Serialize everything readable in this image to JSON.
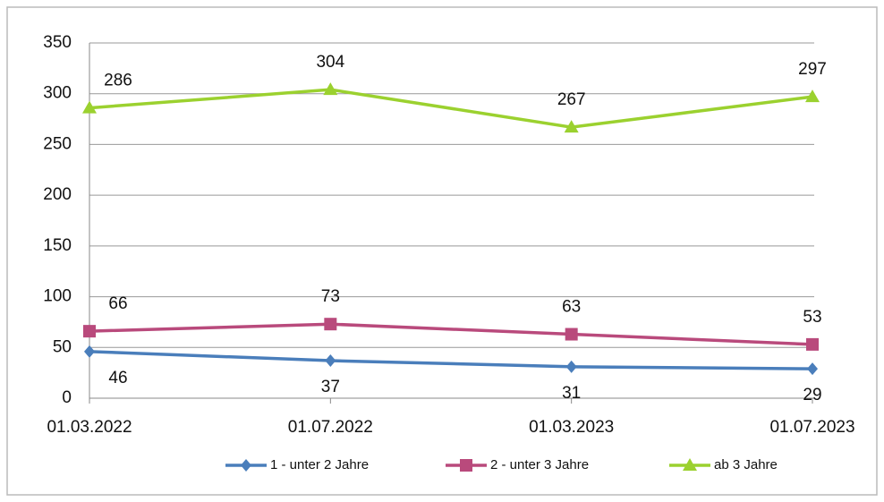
{
  "chart_data": {
    "type": "line",
    "categories": [
      "01.03.2022",
      "01.07.2022",
      "01.03.2023",
      "01.07.2023"
    ],
    "series": [
      {
        "name": "1 - unter 2 Jahre",
        "color": "#4a7ebb",
        "marker": "diamond",
        "values": [
          46,
          37,
          31,
          29
        ]
      },
      {
        "name": "2 - unter 3 Jahre",
        "color": "#b94a7c",
        "marker": "square",
        "values": [
          66,
          73,
          63,
          53
        ]
      },
      {
        "name": "ab 3 Jahre",
        "color": "#9bd12f",
        "marker": "triangle",
        "values": [
          286,
          304,
          267,
          297
        ]
      }
    ],
    "ylim": [
      0,
      350
    ],
    "yticks": [
      0,
      50,
      100,
      150,
      200,
      250,
      300,
      350
    ],
    "grid": true,
    "legend": "bottom"
  }
}
